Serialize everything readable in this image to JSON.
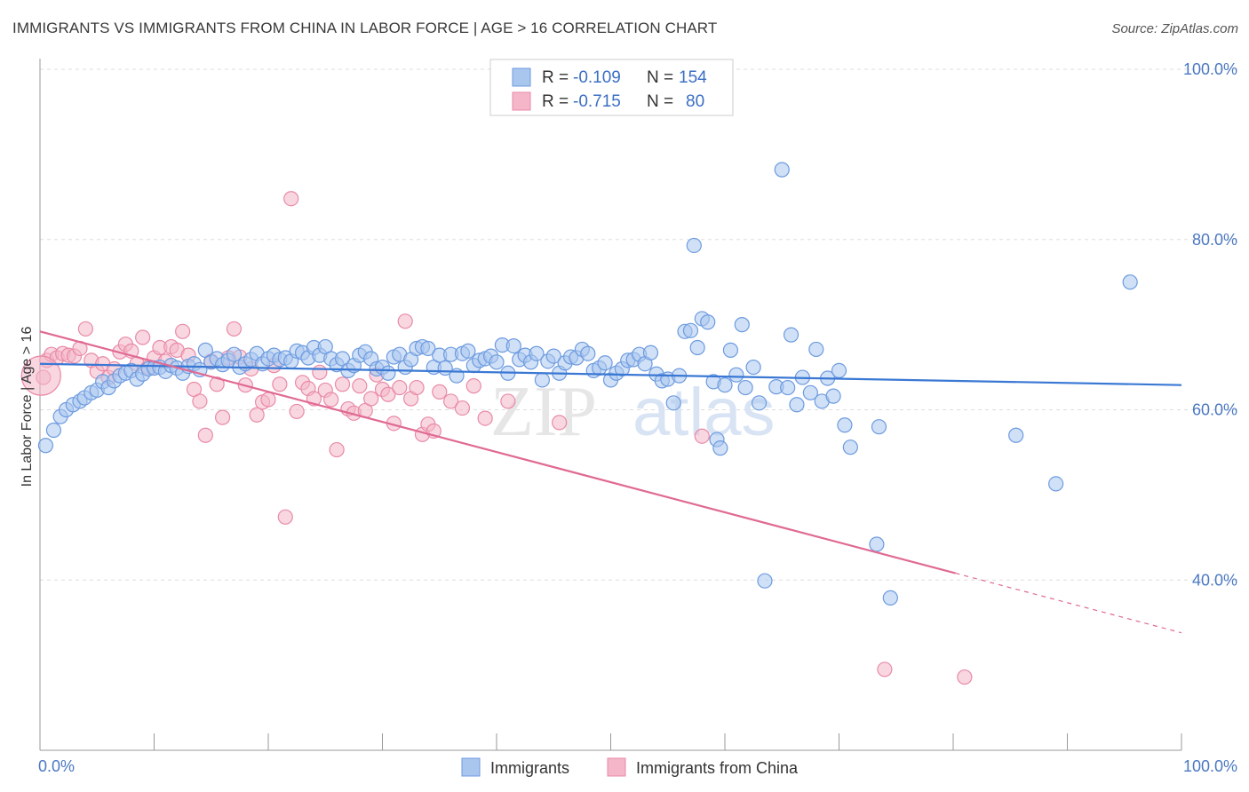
{
  "header": {
    "title": "IMMIGRANTS VS IMMIGRANTS FROM CHINA IN LABOR FORCE | AGE > 16 CORRELATION CHART",
    "source": "Source: ZipAtlas.com"
  },
  "watermark": {
    "part1": "ZIP",
    "part2": "atlas"
  },
  "colors": {
    "blue_fill": "#a9c6ef",
    "blue_stroke": "#6d9be0",
    "blue_line": "#3a78d4",
    "pink_fill": "#f4b6c8",
    "pink_stroke": "#e98aa7",
    "pink_line": "#e06a93",
    "grid": "#dddddd",
    "tick_label": "#4a78c2"
  },
  "legend": {
    "r_label": "R =",
    "n_label": "N =",
    "rows": [
      {
        "r": "-0.109",
        "n": "154",
        "color": "blue"
      },
      {
        "r": "-0.715",
        "n": "80",
        "color": "pink"
      }
    ]
  },
  "chart_data": {
    "type": "scatter",
    "title": "IMMIGRANTS VS IMMIGRANTS FROM CHINA IN LABOR FORCE | AGE > 16 CORRELATION CHART",
    "xlabel": "",
    "ylabel": "In Labor Force | Age > 16",
    "xlim": [
      0,
      100
    ],
    "ylim": [
      20,
      100
    ],
    "x_tick_labels": [
      "0.0%",
      "100.0%"
    ],
    "y_ticks": [
      40,
      60,
      80,
      100
    ],
    "y_tick_labels": [
      "40.0%",
      "60.0%",
      "80.0%",
      "100.0%"
    ],
    "grid": true,
    "legend_position": "top-center",
    "series": [
      {
        "name": "Immigrants",
        "color": "blue",
        "trend": {
          "x0": 0,
          "y0": 65.4,
          "x1": 100,
          "y1": 62.9
        },
        "points": [
          [
            0.5,
            55.8
          ],
          [
            1.2,
            57.6
          ],
          [
            1.8,
            59.2
          ],
          [
            2.3,
            60.0
          ],
          [
            2.9,
            60.6
          ],
          [
            3.5,
            61.0
          ],
          [
            3.9,
            61.4
          ],
          [
            4.5,
            62.0
          ],
          [
            5.0,
            62.3
          ],
          [
            5.5,
            63.3
          ],
          [
            6.0,
            62.6
          ],
          [
            6.5,
            63.4
          ],
          [
            7.0,
            64.0
          ],
          [
            7.5,
            64.3
          ],
          [
            8.0,
            64.6
          ],
          [
            8.5,
            63.6
          ],
          [
            9.0,
            64.2
          ],
          [
            9.5,
            64.8
          ],
          [
            10.0,
            64.9
          ],
          [
            10.5,
            65.0
          ],
          [
            11.0,
            64.5
          ],
          [
            11.5,
            65.2
          ],
          [
            12.0,
            64.9
          ],
          [
            12.5,
            64.3
          ],
          [
            13.0,
            65.1
          ],
          [
            13.5,
            65.4
          ],
          [
            14.0,
            64.7
          ],
          [
            14.5,
            67.0
          ],
          [
            15.0,
            65.6
          ],
          [
            15.5,
            66.0
          ],
          [
            16.0,
            65.3
          ],
          [
            16.5,
            65.8
          ],
          [
            17.0,
            66.5
          ],
          [
            17.5,
            65.0
          ],
          [
            18.0,
            65.4
          ],
          [
            18.5,
            65.9
          ],
          [
            19.0,
            66.6
          ],
          [
            19.5,
            65.4
          ],
          [
            20.0,
            66.0
          ],
          [
            20.5,
            66.4
          ],
          [
            21.0,
            65.9
          ],
          [
            21.5,
            66.1
          ],
          [
            22.0,
            65.7
          ],
          [
            22.5,
            66.9
          ],
          [
            23.0,
            66.7
          ],
          [
            23.5,
            66.1
          ],
          [
            24.0,
            67.3
          ],
          [
            24.5,
            66.4
          ],
          [
            25.0,
            67.4
          ],
          [
            25.5,
            66.0
          ],
          [
            26.0,
            65.3
          ],
          [
            26.5,
            66.0
          ],
          [
            27.0,
            64.6
          ],
          [
            27.5,
            65.2
          ],
          [
            28.0,
            66.4
          ],
          [
            28.5,
            66.8
          ],
          [
            29.0,
            66.0
          ],
          [
            29.5,
            64.8
          ],
          [
            30.0,
            65.0
          ],
          [
            30.5,
            64.3
          ],
          [
            31.0,
            66.2
          ],
          [
            31.5,
            66.5
          ],
          [
            32.0,
            65.0
          ],
          [
            32.5,
            65.9
          ],
          [
            33.0,
            67.2
          ],
          [
            33.5,
            67.4
          ],
          [
            34.0,
            67.2
          ],
          [
            34.5,
            65.0
          ],
          [
            35.0,
            66.4
          ],
          [
            35.5,
            64.9
          ],
          [
            36.0,
            66.5
          ],
          [
            36.5,
            64.0
          ],
          [
            37.0,
            66.6
          ],
          [
            37.5,
            66.9
          ],
          [
            38.0,
            65.2
          ],
          [
            38.5,
            65.8
          ],
          [
            39.0,
            66.0
          ],
          [
            39.5,
            66.3
          ],
          [
            40.0,
            65.6
          ],
          [
            40.5,
            67.6
          ],
          [
            41.0,
            64.3
          ],
          [
            41.5,
            67.5
          ],
          [
            42.0,
            65.9
          ],
          [
            42.5,
            66.4
          ],
          [
            43.0,
            65.6
          ],
          [
            43.5,
            66.6
          ],
          [
            44.0,
            63.5
          ],
          [
            44.5,
            65.7
          ],
          [
            45.0,
            66.3
          ],
          [
            45.5,
            64.3
          ],
          [
            46.0,
            65.5
          ],
          [
            46.5,
            66.2
          ],
          [
            47.0,
            66.1
          ],
          [
            47.5,
            67.1
          ],
          [
            48.0,
            66.6
          ],
          [
            48.5,
            64.6
          ],
          [
            49.0,
            64.9
          ],
          [
            49.5,
            65.5
          ],
          [
            50.0,
            63.5
          ],
          [
            50.5,
            64.3
          ],
          [
            51.0,
            64.8
          ],
          [
            51.5,
            65.8
          ],
          [
            52.0,
            65.9
          ],
          [
            52.5,
            66.5
          ],
          [
            53.0,
            65.4
          ],
          [
            53.5,
            66.7
          ],
          [
            54.0,
            64.2
          ],
          [
            54.5,
            63.4
          ],
          [
            55.0,
            63.6
          ],
          [
            55.5,
            60.8
          ],
          [
            56.0,
            64.0
          ],
          [
            56.5,
            69.2
          ],
          [
            57.0,
            69.3
          ],
          [
            57.3,
            79.3
          ],
          [
            57.6,
            67.3
          ],
          [
            58.0,
            70.7
          ],
          [
            58.5,
            70.3
          ],
          [
            59.0,
            63.3
          ],
          [
            59.3,
            56.5
          ],
          [
            59.6,
            55.5
          ],
          [
            60.0,
            62.9
          ],
          [
            60.5,
            67.0
          ],
          [
            61.0,
            64.1
          ],
          [
            61.5,
            70.0
          ],
          [
            61.8,
            62.6
          ],
          [
            62.5,
            65.0
          ],
          [
            63.0,
            60.8
          ],
          [
            63.5,
            39.9
          ],
          [
            64.5,
            62.7
          ],
          [
            65.0,
            88.2
          ],
          [
            65.5,
            62.6
          ],
          [
            65.8,
            68.8
          ],
          [
            66.3,
            60.6
          ],
          [
            66.8,
            63.8
          ],
          [
            67.5,
            62.0
          ],
          [
            68.0,
            67.1
          ],
          [
            68.5,
            61.0
          ],
          [
            69.0,
            63.7
          ],
          [
            69.5,
            61.6
          ],
          [
            70.0,
            64.6
          ],
          [
            70.5,
            58.2
          ],
          [
            71.0,
            55.6
          ],
          [
            73.5,
            58.0
          ],
          [
            73.3,
            44.2
          ],
          [
            74.5,
            37.9
          ],
          [
            85.5,
            57.0
          ],
          [
            89.0,
            51.3
          ],
          [
            95.5,
            75.0
          ]
        ]
      },
      {
        "name": "Immigrants from China",
        "color": "pink",
        "trend": {
          "x0": 0,
          "y0": 69.2,
          "x1": 80.2,
          "y1": 40.8,
          "dashed_to_x": 100,
          "dashed_to_y": 33.8
        },
        "points": [
          [
            0.3,
            63.8
          ],
          [
            0.6,
            65.8
          ],
          [
            1.0,
            66.5
          ],
          [
            1.5,
            66.1
          ],
          [
            2.0,
            66.6
          ],
          [
            2.5,
            66.4
          ],
          [
            3.0,
            66.3
          ],
          [
            3.5,
            67.2
          ],
          [
            4.0,
            69.5
          ],
          [
            4.5,
            65.8
          ],
          [
            5.0,
            64.5
          ],
          [
            5.5,
            65.4
          ],
          [
            6.0,
            63.8
          ],
          [
            6.5,
            64.8
          ],
          [
            7.0,
            66.8
          ],
          [
            7.5,
            67.7
          ],
          [
            8.0,
            66.9
          ],
          [
            8.5,
            65.4
          ],
          [
            9.0,
            68.5
          ],
          [
            9.5,
            65.0
          ],
          [
            10.0,
            66.1
          ],
          [
            10.5,
            67.3
          ],
          [
            11.0,
            65.7
          ],
          [
            11.5,
            67.4
          ],
          [
            12.0,
            67.0
          ],
          [
            12.5,
            69.2
          ],
          [
            13.0,
            66.4
          ],
          [
            13.5,
            62.4
          ],
          [
            14.0,
            61.0
          ],
          [
            14.5,
            57.0
          ],
          [
            15.0,
            65.7
          ],
          [
            15.5,
            63.0
          ],
          [
            16.0,
            59.1
          ],
          [
            16.5,
            66.1
          ],
          [
            17.0,
            69.5
          ],
          [
            17.5,
            66.2
          ],
          [
            18.0,
            62.9
          ],
          [
            18.5,
            64.8
          ],
          [
            19.0,
            59.4
          ],
          [
            19.5,
            60.9
          ],
          [
            20.0,
            61.2
          ],
          [
            20.5,
            65.2
          ],
          [
            21.0,
            63.0
          ],
          [
            21.5,
            47.4
          ],
          [
            22.0,
            84.8
          ],
          [
            22.5,
            59.8
          ],
          [
            23.0,
            63.2
          ],
          [
            23.5,
            62.5
          ],
          [
            24.0,
            61.3
          ],
          [
            24.5,
            64.4
          ],
          [
            25.0,
            62.3
          ],
          [
            25.5,
            61.2
          ],
          [
            26.0,
            55.3
          ],
          [
            26.5,
            63.0
          ],
          [
            27.0,
            60.1
          ],
          [
            27.5,
            59.6
          ],
          [
            28.0,
            62.8
          ],
          [
            28.5,
            59.9
          ],
          [
            29.0,
            61.3
          ],
          [
            29.5,
            64.1
          ],
          [
            30.0,
            62.4
          ],
          [
            30.5,
            61.8
          ],
          [
            31.0,
            58.4
          ],
          [
            31.5,
            62.6
          ],
          [
            32.0,
            70.4
          ],
          [
            32.5,
            61.3
          ],
          [
            33.0,
            62.6
          ],
          [
            33.5,
            57.1
          ],
          [
            34.0,
            58.3
          ],
          [
            34.5,
            57.5
          ],
          [
            35.0,
            62.1
          ],
          [
            36.0,
            61.0
          ],
          [
            37.0,
            60.2
          ],
          [
            38.0,
            62.8
          ],
          [
            39.0,
            59.0
          ],
          [
            41.0,
            61.0
          ],
          [
            45.5,
            58.5
          ],
          [
            58.0,
            56.9
          ],
          [
            74.0,
            29.5
          ],
          [
            81.0,
            28.6
          ]
        ]
      }
    ]
  },
  "bottom_legend": [
    {
      "label": "Immigrants",
      "color": "blue"
    },
    {
      "label": "Immigrants from China",
      "color": "pink"
    }
  ]
}
